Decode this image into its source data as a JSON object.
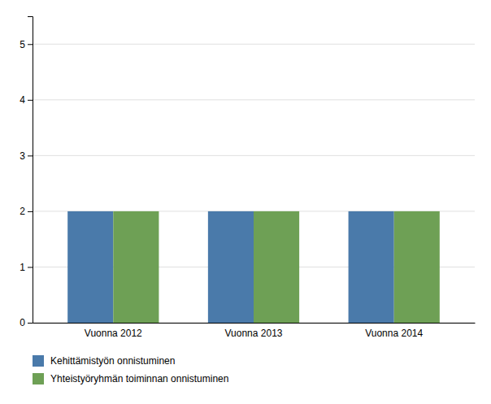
{
  "chart_data": {
    "type": "bar",
    "categories": [
      "Vuonna 2012",
      "Vuonna 2013",
      "Vuonna 2014"
    ],
    "series": [
      {
        "name": "Kehittämistyön onnistuminen",
        "color": "#4a7aaa",
        "values": [
          2,
          2,
          2
        ]
      },
      {
        "name": "Yhteistyöryhmän toiminnan onnistuminen",
        "color": "#6ea055",
        "values": [
          2,
          2,
          2
        ]
      }
    ],
    "ylim": [
      0,
      5.5
    ],
    "yticks": [
      0,
      1,
      2,
      3,
      4,
      5
    ],
    "grid": true,
    "legend": "bottom"
  }
}
